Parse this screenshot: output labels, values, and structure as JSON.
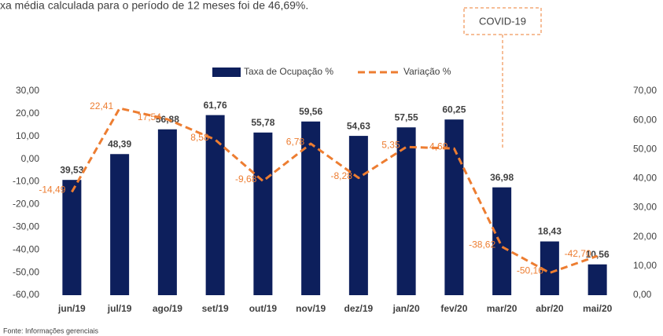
{
  "chart_data": {
    "type": "bar_line",
    "subtitle": "xa média calculada para o período de 12 meses foi de 46,69%.",
    "annotation": "COVID-19",
    "source": "Fonte: Informações gerenciais",
    "categories": [
      "jun/19",
      "jul/19",
      "ago/19",
      "set/19",
      "out/19",
      "nov/19",
      "dez/19",
      "jan/20",
      "fev/20",
      "mar/20",
      "abr/20",
      "mai/20"
    ],
    "series": [
      {
        "name": "Taxa de Ocupação %",
        "color": "#0d1f5c",
        "axis": "y2",
        "values": [
          39.53,
          48.39,
          56.88,
          61.76,
          55.78,
          59.56,
          54.63,
          57.55,
          60.25,
          36.98,
          18.43,
          10.56
        ],
        "value_labels": [
          "39,53",
          "48,39",
          "56,88",
          "61,76",
          "55,78",
          "59,56",
          "54,63",
          "57,55",
          "60,25",
          "36,98",
          "18,43",
          "10,56"
        ]
      },
      {
        "name": "Variação %",
        "color": "#ed7d31",
        "axis": "y",
        "values": [
          -14.49,
          22.41,
          17.54,
          8.58,
          -9.68,
          6.78,
          -8.28,
          5.35,
          4.69,
          -38.62,
          -50.16,
          -42.7
        ],
        "value_labels": [
          "-14,49",
          "22,41",
          "17,54",
          "8,58",
          "-9,68",
          "6,78",
          "-8,28",
          "5,35",
          "4,69",
          "-38,62",
          "-50,16",
          "-42,70"
        ]
      }
    ],
    "ylim": [
      -60,
      30
    ],
    "yticks": [
      {
        "value": -60,
        "label": "-60,00"
      },
      {
        "value": -50,
        "label": "-50,00"
      },
      {
        "value": -40,
        "label": "-40,00"
      },
      {
        "value": -30,
        "label": "-30,00"
      },
      {
        "value": -20,
        "label": "-20,00"
      },
      {
        "value": -10,
        "label": "-10,00"
      },
      {
        "value": 0,
        "label": "0,00"
      },
      {
        "value": 10,
        "label": "10,00"
      },
      {
        "value": 20,
        "label": "20,00"
      },
      {
        "value": 30,
        "label": "30,00"
      }
    ],
    "y2lim": [
      0,
      70
    ],
    "y2ticks": [
      {
        "value": 0,
        "label": "0,00"
      },
      {
        "value": 10,
        "label": "10,00"
      },
      {
        "value": 20,
        "label": "20,00"
      },
      {
        "value": 30,
        "label": "30,00"
      },
      {
        "value": 40,
        "label": "40,00"
      },
      {
        "value": 50,
        "label": "50,00"
      },
      {
        "value": 60,
        "label": "60,00"
      },
      {
        "value": 70,
        "label": "70,00"
      }
    ],
    "legend": "top"
  }
}
